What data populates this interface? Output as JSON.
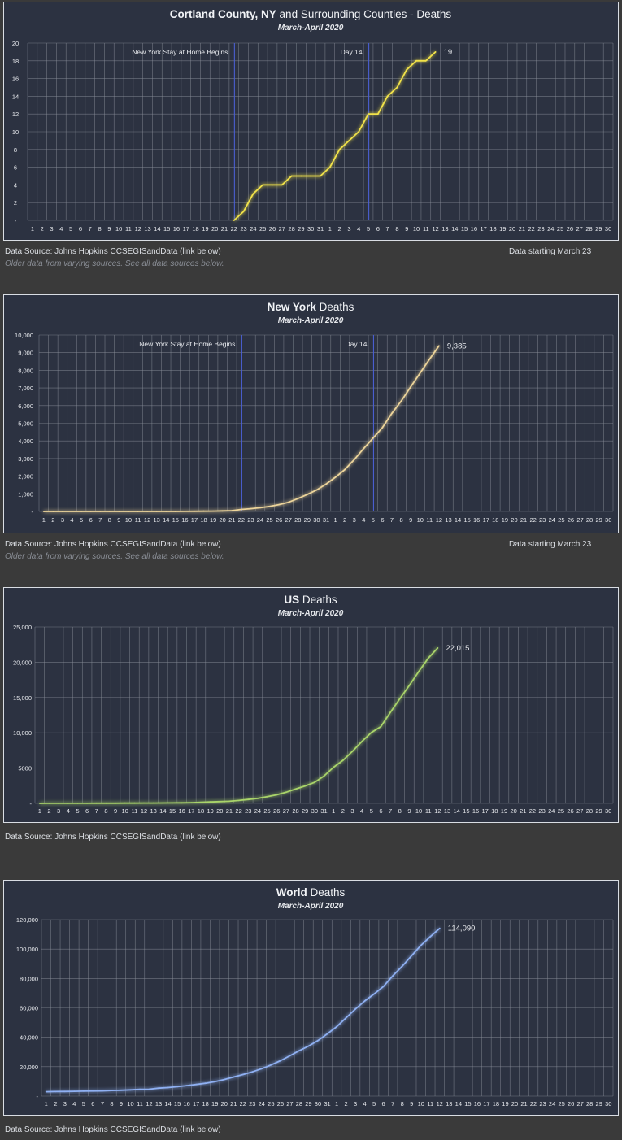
{
  "source_text": "Data Source:  Johns Hopkins CCSEGISandData (link below)",
  "older_text": "Older data from varying sources.  See all data sources below.",
  "start_text": "Data starting March 23",
  "chart_data": [
    {
      "type": "line",
      "title_bold": "Cortland County, NY",
      "title_rest": " and Surrounding Counties - Deaths",
      "subtitle": "March-April 2020",
      "x_labels": [
        "1",
        "2",
        "3",
        "4",
        "5",
        "6",
        "7",
        "8",
        "9",
        "10",
        "11",
        "12",
        "13",
        "14",
        "15",
        "16",
        "17",
        "18",
        "19",
        "20",
        "21",
        "22",
        "23",
        "24",
        "25",
        "26",
        "27",
        "28",
        "29",
        "30",
        "31",
        "1",
        "2",
        "3",
        "4",
        "5",
        "6",
        "7",
        "8",
        "9",
        "10",
        "11",
        "12",
        "13",
        "14",
        "15",
        "16",
        "17",
        "18",
        "19",
        "20",
        "21",
        "22",
        "23",
        "24",
        "25",
        "26",
        "27",
        "28",
        "29",
        "30"
      ],
      "y_ticks": [
        "-",
        "2",
        "4",
        "6",
        "8",
        "10",
        "12",
        "14",
        "16",
        "18",
        "20"
      ],
      "ylim": [
        0,
        20
      ],
      "x_start": 22,
      "values": [
        0,
        1,
        3,
        4,
        4,
        4,
        5,
        5,
        5,
        5,
        6,
        8,
        9,
        10,
        12,
        12,
        14,
        15,
        17,
        18,
        18,
        19
      ],
      "end_label": "19",
      "color": "#f2e34a",
      "glow": "#c8c22a",
      "annotations": [
        {
          "day": 22,
          "label": "New York Stay at Home Begins"
        },
        {
          "day": 36,
          "label": "Day 14"
        }
      ]
    },
    {
      "type": "line",
      "title_bold": "New York",
      "title_rest": " Deaths",
      "subtitle": "March-April 2020",
      "x_labels": [
        "1",
        "2",
        "3",
        "4",
        "5",
        "6",
        "7",
        "8",
        "9",
        "10",
        "11",
        "12",
        "13",
        "14",
        "15",
        "16",
        "17",
        "18",
        "19",
        "20",
        "21",
        "22",
        "23",
        "24",
        "25",
        "26",
        "27",
        "28",
        "29",
        "30",
        "31",
        "1",
        "2",
        "3",
        "4",
        "5",
        "6",
        "7",
        "8",
        "9",
        "10",
        "11",
        "12",
        "13",
        "14",
        "15",
        "16",
        "17",
        "18",
        "19",
        "20",
        "21",
        "22",
        "23",
        "24",
        "25",
        "26",
        "27",
        "28",
        "29",
        "30"
      ],
      "y_ticks": [
        "-",
        "1,000",
        "2,000",
        "3,000",
        "4,000",
        "5,000",
        "6,000",
        "7,000",
        "8,000",
        "9,000",
        "10,000"
      ],
      "ylim": [
        0,
        10000
      ],
      "x_start": 1,
      "values": [
        0,
        0,
        0,
        0,
        0,
        0,
        0,
        0,
        0,
        0,
        0,
        0,
        0,
        0,
        0,
        3,
        7,
        12,
        20,
        30,
        45,
        114,
        156,
        210,
        285,
        385,
        519,
        728,
        965,
        1218,
        1550,
        1941,
        2373,
        2935,
        3565,
        4159,
        4758,
        5563,
        6268,
        7067,
        7844,
        8627,
        9385
      ],
      "end_label": "9,385",
      "color": "#ecd49a",
      "glow": "#b89a5a",
      "annotations": [
        {
          "day": 22,
          "label": "New York Stay at Home Begins"
        },
        {
          "day": 36,
          "label": "Day 14"
        }
      ]
    },
    {
      "type": "line",
      "title_bold": "US",
      "title_rest": " Deaths",
      "subtitle": "March-April 2020",
      "x_labels": [
        "1",
        "2",
        "3",
        "4",
        "5",
        "6",
        "7",
        "8",
        "9",
        "10",
        "11",
        "12",
        "13",
        "14",
        "15",
        "16",
        "17",
        "18",
        "19",
        "20",
        "21",
        "22",
        "23",
        "24",
        "25",
        "26",
        "27",
        "28",
        "29",
        "30",
        "31",
        "1",
        "2",
        "3",
        "4",
        "5",
        "6",
        "7",
        "8",
        "9",
        "10",
        "11",
        "12",
        "13",
        "14",
        "15",
        "16",
        "17",
        "18",
        "19",
        "20",
        "21",
        "22",
        "23",
        "24",
        "25",
        "26",
        "27",
        "28",
        "29",
        "30"
      ],
      "y_ticks": [
        "-",
        "5000",
        "10,000",
        "15,000",
        "20,000",
        "25,000"
      ],
      "ylim": [
        0,
        25000
      ],
      "x_start": 1,
      "values": [
        1,
        6,
        9,
        11,
        12,
        14,
        19,
        22,
        26,
        30,
        38,
        41,
        48,
        57,
        68,
        86,
        109,
        150,
        206,
        255,
        301,
        414,
        555,
        706,
        942,
        1209,
        1581,
        2026,
        2467,
        2978,
        3873,
        5116,
        6095,
        7378,
        8762,
        10049,
        10871,
        12895,
        14817,
        16710,
        18690,
        20563,
        22015
      ],
      "end_label": "22,015",
      "color": "#a9d46a",
      "glow": "#6f9a2a",
      "annotations": []
    },
    {
      "type": "line",
      "title_bold": "World",
      "title_rest": " Deaths",
      "subtitle": "March-April 2020",
      "x_labels": [
        "1",
        "2",
        "3",
        "4",
        "5",
        "6",
        "7",
        "8",
        "9",
        "10",
        "11",
        "12",
        "13",
        "14",
        "15",
        "16",
        "17",
        "18",
        "19",
        "20",
        "21",
        "22",
        "23",
        "24",
        "25",
        "26",
        "27",
        "28",
        "29",
        "30",
        "31",
        "1",
        "2",
        "3",
        "4",
        "5",
        "6",
        "7",
        "8",
        "9",
        "10",
        "11",
        "12",
        "13",
        "14",
        "15",
        "16",
        "17",
        "18",
        "19",
        "20",
        "21",
        "22",
        "23",
        "24",
        "25",
        "26",
        "27",
        "28",
        "29",
        "30"
      ],
      "y_ticks": [
        "-",
        "20,000",
        "40,000",
        "60,000",
        "80,000",
        "100,000",
        "120,000"
      ],
      "ylim": [
        0,
        120000
      ],
      "x_start": 1,
      "values": [
        2996,
        3085,
        3160,
        3254,
        3348,
        3460,
        3558,
        3802,
        3988,
        4262,
        4615,
        4720,
        5404,
        5819,
        6440,
        7126,
        7905,
        8733,
        9867,
        11299,
        12973,
        14651,
        16505,
        18625,
        21181,
        24073,
        27359,
        30861,
        34003,
        37777,
        42303,
        47194,
        53167,
        59171,
        64703,
        69455,
        74565,
        81865,
        88338,
        95455,
        102525,
        108503,
        114090
      ],
      "end_label": "114,090",
      "color": "#8fb0f2",
      "glow": "#4c6cc0",
      "annotations": []
    }
  ]
}
